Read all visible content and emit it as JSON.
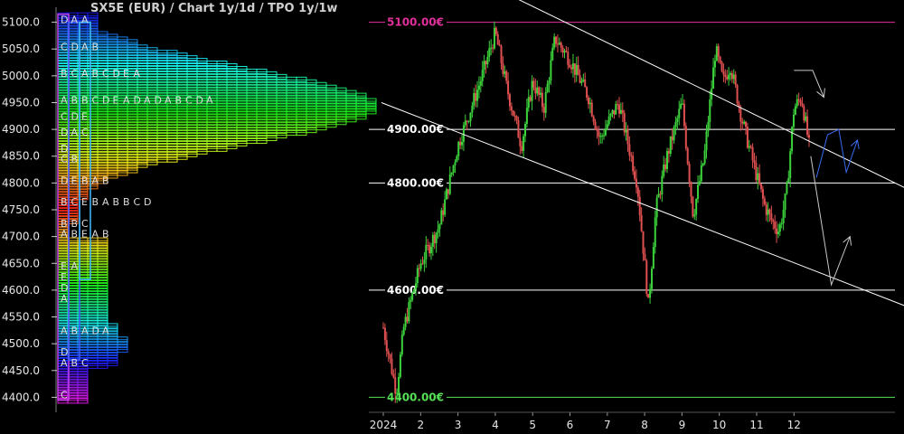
{
  "chart_data": {
    "type": "candlestick",
    "title": "SX5E (EUR) /  Chart 1y/1d / TPO 1y/1w",
    "y_ticks": [
      4400,
      4450,
      4500,
      4550,
      4600,
      4650,
      4700,
      4750,
      4800,
      4850,
      4900,
      4950,
      5000,
      5050,
      5100
    ],
    "y_tick_labels": [
      "4400.0",
      "4450.0",
      "4500.0",
      "4550.0",
      "4600.0",
      "4650.0",
      "4700.0",
      "4750.0",
      "4800.0",
      "4850.0",
      "4900.0",
      "4950.0",
      "5000.0",
      "5050.0",
      "5100.0"
    ],
    "ylim": [
      4372,
      5128
    ],
    "x_labels": [
      {
        "label": "2024",
        "x": 0
      },
      {
        "label": "2",
        "x": 1
      },
      {
        "label": "3",
        "x": 2
      },
      {
        "label": "4",
        "x": 3
      },
      {
        "label": "5",
        "x": 4
      },
      {
        "label": "6",
        "x": 5
      },
      {
        "label": "7",
        "x": 6
      },
      {
        "label": "8",
        "x": 7
      },
      {
        "label": "9",
        "x": 8
      },
      {
        "label": "10",
        "x": 9
      },
      {
        "label": "11",
        "x": 10
      },
      {
        "label": "12",
        "x": 11
      }
    ],
    "price_levels": [
      {
        "value": 5100,
        "label": "5100.00€",
        "color": "#e0309a"
      },
      {
        "value": 4900,
        "label": "4900.00€",
        "color": "#ffffff"
      },
      {
        "value": 4800,
        "label": "4800.00€",
        "color": "#ffffff"
      },
      {
        "value": 4600,
        "label": "4600.00€",
        "color": "#ffffff"
      },
      {
        "value": 4400,
        "label": "4400.00€",
        "color": "#55e055"
      }
    ],
    "anchors": [
      [
        0,
        4530
      ],
      [
        0.35,
        4410
      ],
      [
        0.55,
        4530
      ],
      [
        1.0,
        4650
      ],
      [
        1.5,
        4720
      ],
      [
        2.0,
        4870
      ],
      [
        2.6,
        4990
      ],
      [
        3.0,
        5080
      ],
      [
        3.3,
        4980
      ],
      [
        3.7,
        4870
      ],
      [
        4.0,
        4990
      ],
      [
        4.3,
        4940
      ],
      [
        4.6,
        5070
      ],
      [
        5.0,
        5030
      ],
      [
        5.5,
        4960
      ],
      [
        5.8,
        4880
      ],
      [
        6.0,
        4910
      ],
      [
        6.3,
        4950
      ],
      [
        6.5,
        4890
      ],
      [
        6.8,
        4800
      ],
      [
        7.0,
        4650
      ],
      [
        7.1,
        4570
      ],
      [
        7.3,
        4750
      ],
      [
        7.6,
        4850
      ],
      [
        8.0,
        4950
      ],
      [
        8.3,
        4740
      ],
      [
        8.6,
        4850
      ],
      [
        8.9,
        5050
      ],
      [
        9.1,
        4990
      ],
      [
        9.3,
        5020
      ],
      [
        9.6,
        4920
      ],
      [
        9.9,
        4840
      ],
      [
        10.2,
        4760
      ],
      [
        10.4,
        4730
      ],
      [
        10.6,
        4710
      ],
      [
        10.8,
        4780
      ],
      [
        11.0,
        4940
      ],
      [
        11.2,
        4960
      ],
      [
        11.45,
        4850
      ]
    ],
    "channel_lines": [
      {
        "x1": 3.4,
        "y1": 5150,
        "x2": 14.0,
        "y2": 4790,
        "color": "#ffffff"
      },
      {
        "x1": -0.05,
        "y1": 4950,
        "x2": 14.0,
        "y2": 4570,
        "color": "#ffffff"
      }
    ],
    "projections": [
      {
        "color": "#3a6cf0",
        "points": [
          [
            11.6,
            4810
          ],
          [
            11.9,
            4890
          ],
          [
            12.2,
            4900
          ],
          [
            12.4,
            4820
          ],
          [
            12.7,
            4880
          ]
        ]
      },
      {
        "color": "#c8c8c8",
        "points": [
          [
            11.45,
            4850
          ],
          [
            12.0,
            4610
          ],
          [
            12.5,
            4700
          ]
        ]
      },
      {
        "color": "#c8c8c8",
        "points": [
          [
            11.0,
            5010
          ],
          [
            11.5,
            5010
          ],
          [
            11.8,
            4960
          ]
        ]
      }
    ],
    "tpo_profile": {
      "min": 4395,
      "max": 5115,
      "letter_rows": [
        {
          "price": 5105,
          "letters": [
            "D",
            "A",
            "A"
          ]
        },
        {
          "price": 5055,
          "letters": [
            "C",
            "D",
            "A",
            "B"
          ]
        },
        {
          "price": 5005,
          "letters": [
            "B",
            "C",
            "A",
            "B",
            "C",
            "D",
            "E",
            "A"
          ]
        },
        {
          "price": 4955,
          "letters": [
            "A",
            "B",
            "B",
            "C",
            "D",
            "E",
            "A",
            "D",
            "A",
            "D",
            "A",
            "B",
            "C",
            "D",
            "A"
          ]
        },
        {
          "price": 4925,
          "letters": [
            "C",
            "D",
            "E"
          ]
        },
        {
          "price": 4895,
          "letters": [
            "D",
            "A",
            "C"
          ]
        },
        {
          "price": 4865,
          "letters": [
            "D"
          ]
        },
        {
          "price": 4845,
          "letters": [
            "C",
            "B"
          ]
        },
        {
          "price": 4805,
          "letters": [
            "D",
            "E",
            "B",
            "A",
            "B"
          ]
        },
        {
          "price": 4765,
          "letters": [
            "B",
            "C",
            "E",
            "B",
            "A",
            "B",
            "B",
            "C",
            "D"
          ]
        },
        {
          "price": 4725,
          "letters": [
            "B",
            "B",
            "C"
          ]
        },
        {
          "price": 4705,
          "letters": [
            "A",
            "B",
            "E",
            "A",
            "B"
          ]
        },
        {
          "price": 4645,
          "letters": [
            "E",
            "A"
          ]
        },
        {
          "price": 4625,
          "letters": [
            "E"
          ]
        },
        {
          "price": 4605,
          "letters": [
            "D"
          ]
        },
        {
          "price": 4585,
          "letters": [
            "A"
          ]
        },
        {
          "price": 4525,
          "letters": [
            "A",
            "B",
            "A",
            "D",
            "A"
          ]
        },
        {
          "price": 4485,
          "letters": [
            "D"
          ]
        },
        {
          "price": 4465,
          "letters": [
            "A",
            "B",
            "C"
          ]
        },
        {
          "price": 4405,
          "letters": [
            "C"
          ]
        }
      ]
    }
  }
}
